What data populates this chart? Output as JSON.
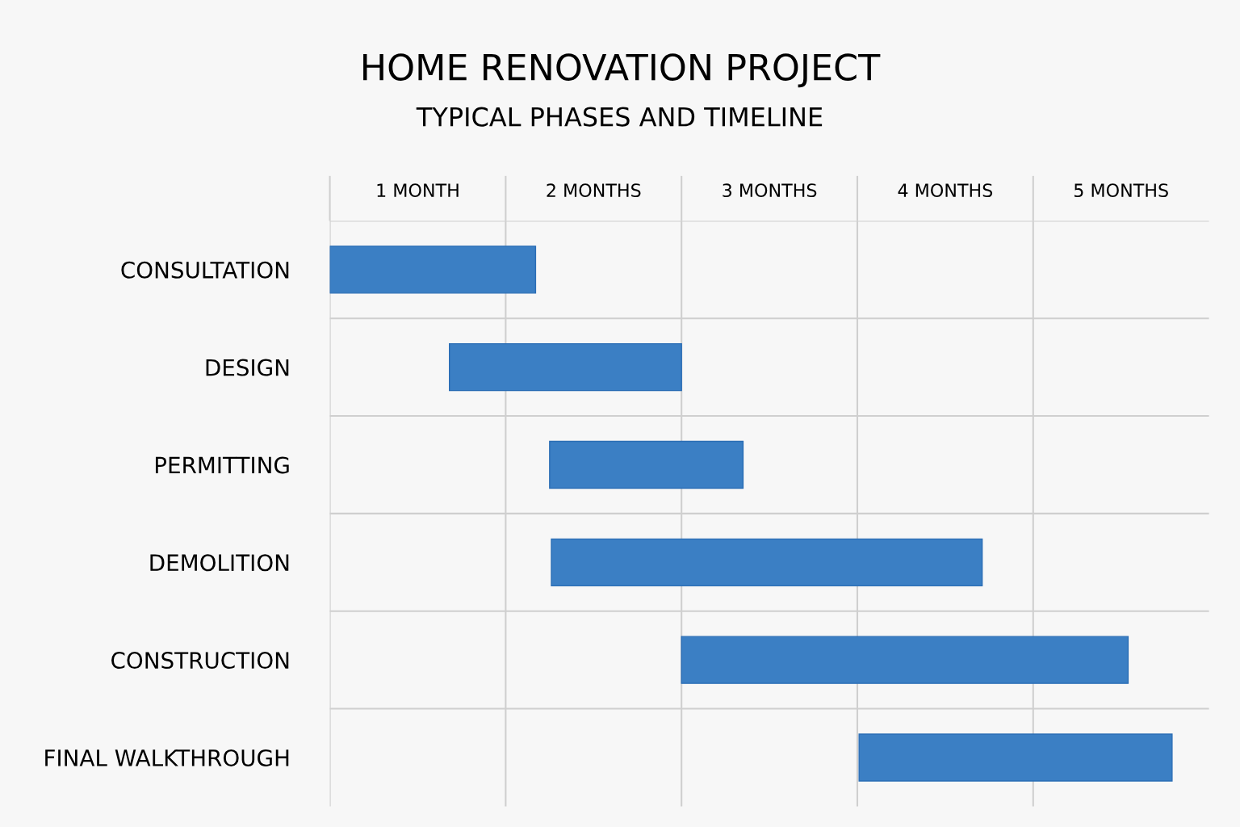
{
  "chart_data": {
    "type": "bar",
    "orientation": "horizontal",
    "title": "HOME RENOVATION PROJECT",
    "subtitle": "TYPICAL PHASES AND TIMELINE",
    "categories": [
      "CONSULTATION",
      "DESIGN",
      "PERMITTING",
      "DEMOLITION",
      "CONSTRUCTION",
      "FINAL WALKTHROUGH"
    ],
    "base": [
      0,
      0.68,
      1.25,
      1.26,
      2.0,
      3.01
    ],
    "values": [
      1.17,
      1.32,
      1.1,
      2.45,
      2.54,
      1.78
    ],
    "color": "#3b7fc4",
    "xlim": [
      0,
      5
    ],
    "xticks": [
      {
        "value": 0,
        "label": null
      },
      {
        "value": 1,
        "label": null
      },
      {
        "value": 2,
        "label": null
      },
      {
        "value": 3,
        "label": null
      },
      {
        "value": 4,
        "label": null
      },
      {
        "value": 0.5,
        "label": "1 MONTH"
      },
      {
        "value": 1.5,
        "label": "2 MONTHS"
      },
      {
        "value": 2.5,
        "label": "3 MONTHS"
      },
      {
        "value": 3.5,
        "label": "4 MONTHS"
      },
      {
        "value": 4.5,
        "label": "5 MONTHS"
      }
    ],
    "grid": true
  }
}
